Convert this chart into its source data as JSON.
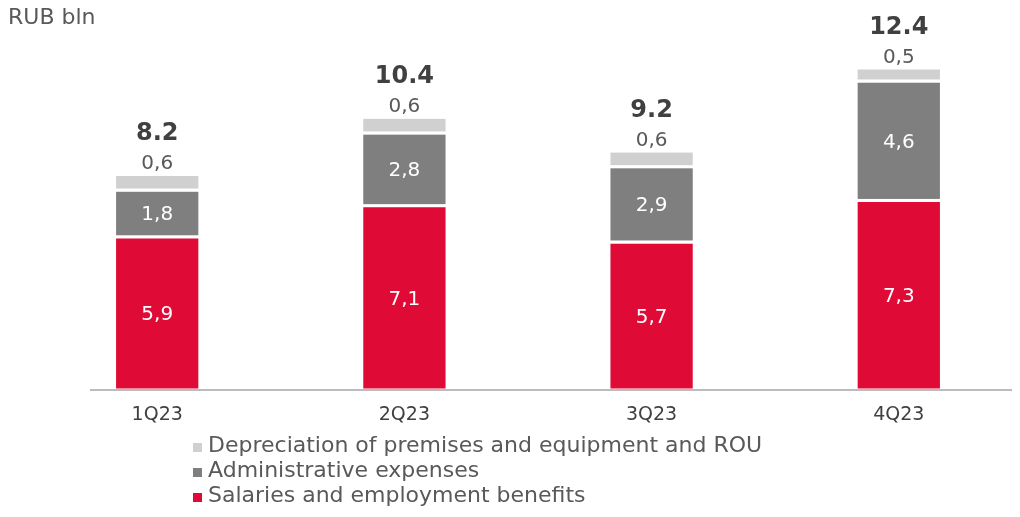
{
  "chart_data": {
    "type": "bar",
    "stacked": true,
    "title": "RUB bln",
    "categories": [
      "1Q23",
      "2Q23",
      "3Q23",
      "4Q23"
    ],
    "series": [
      {
        "name": "Salaries and employment benefits",
        "color": "#e00a36",
        "values": [
          5.9,
          7.1,
          5.7,
          7.3
        ],
        "value_labels": [
          "5,9",
          "7,1",
          "5,7",
          "7,3"
        ]
      },
      {
        "name": "Administrative expenses",
        "color": "#7f7f7f",
        "values": [
          1.8,
          2.8,
          2.9,
          4.6
        ],
        "value_labels": [
          "1,8",
          "2,8",
          "2,9",
          "4,6"
        ]
      },
      {
        "name": "Depreciation of premises and equipment and ROU",
        "color": "#d0d0d0",
        "values": [
          0.6,
          0.6,
          0.6,
          0.5
        ],
        "value_labels": [
          "0,6",
          "0,6",
          "0,6",
          "0,5"
        ]
      }
    ],
    "totals": [
      "8.2",
      "10.4",
      "9.2",
      "12.4"
    ],
    "legend": "bottom"
  }
}
